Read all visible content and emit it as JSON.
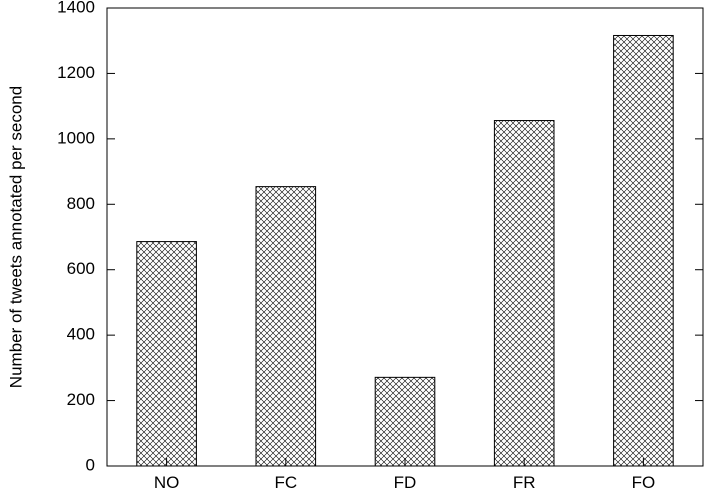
{
  "chart_data": {
    "type": "bar",
    "categories": [
      "NO",
      "FC",
      "FD",
      "FR",
      "FO"
    ],
    "values": [
      686,
      854,
      271,
      1056,
      1316
    ],
    "ylabel": "Number of tweets annotated per second",
    "xlabel": "",
    "title": "",
    "ylim": [
      0,
      1400
    ],
    "yticks": [
      0,
      200,
      400,
      600,
      800,
      1000,
      1200,
      1400
    ],
    "grid": false,
    "bar_fill": "crosshatch",
    "colors": {
      "bar_stroke": "#000000",
      "hatch": "#000000",
      "background": "#ffffff"
    }
  }
}
